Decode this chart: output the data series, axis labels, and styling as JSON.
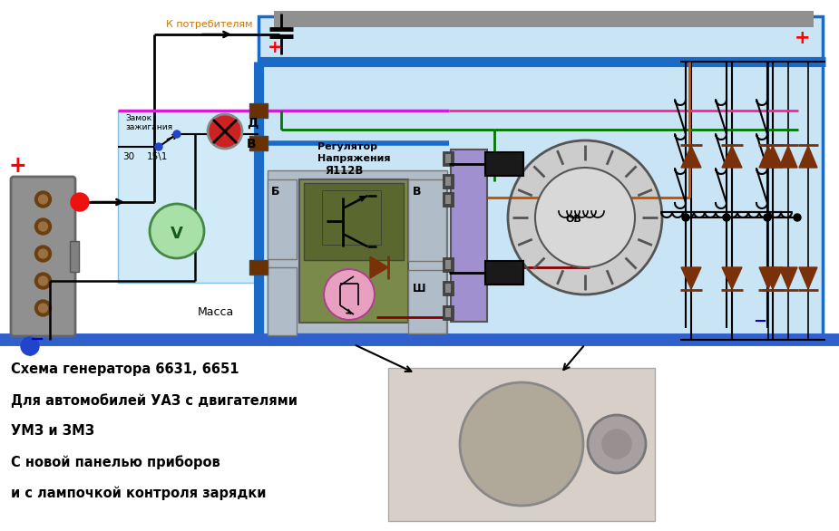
{
  "caption_line1": "Схема генератора 6631, 6651",
  "caption_line2": "Для автомобилей УАЗ с двигателями",
  "caption_line3": "УМЗ и ЗМЗ",
  "caption_line4": "С новой панелью приборов",
  "caption_line5": "и с лампочкой контроля зарядки",
  "bg_main": "#ffffff",
  "bg_light_blue": "#c8e4f5",
  "instr_bg": "#d0eaf8",
  "blue_thick": "#1a6bc8",
  "blue_bus_color": "#1a5db5",
  "magenta": "#ff00ff",
  "green_wire": "#007700",
  "orange_wire": "#cc5500",
  "pink_wire": "#ff2299",
  "dark_red_wire": "#880000",
  "gray_wire": "#888888",
  "red_text": "#ff0000",
  "blue_text": "#0000cc",
  "label_orange": "#cc7700",
  "olive_reg": "#7a8a4a",
  "olive_inner": "#8a9a5a",
  "reg_gray": "#9aacbc",
  "lavender": "#a090d0",
  "brown_diode": "#7a3008"
}
